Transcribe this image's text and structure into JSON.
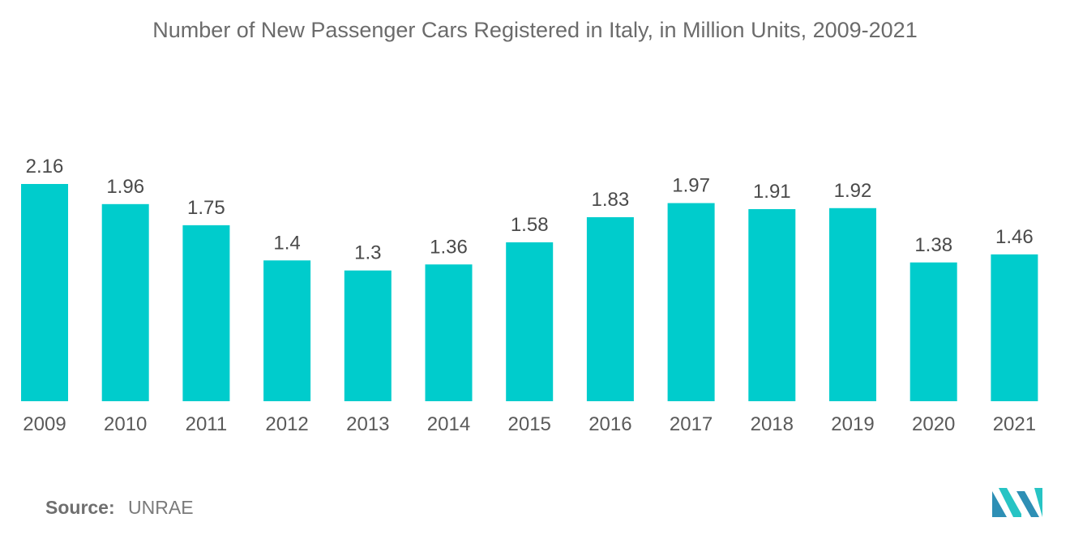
{
  "chart_data": {
    "type": "bar",
    "title": "Number of New Passenger Cars Registered in Italy, in Million Units, 2009-2021",
    "categories": [
      "2009",
      "2010",
      "2011",
      "2012",
      "2013",
      "2014",
      "2015",
      "2016",
      "2017",
      "2018",
      "2019",
      "2020",
      "2021"
    ],
    "values": [
      2.16,
      1.96,
      1.75,
      1.4,
      1.3,
      1.36,
      1.58,
      1.83,
      1.97,
      1.91,
      1.92,
      1.38,
      1.46
    ],
    "value_labels": [
      "2.16",
      "1.96",
      "1.75",
      "1.4",
      "1.3",
      "1.36",
      "1.58",
      "1.83",
      "1.97",
      "1.91",
      "1.92",
      "1.38",
      "1.46"
    ],
    "xlabel": "",
    "ylabel": "",
    "ylim": [
      0,
      2.16
    ],
    "grid": false,
    "legend": "none",
    "bar_color": "#00cccc"
  },
  "source": {
    "label": "Source:",
    "value": "UNRAE"
  },
  "logo": {
    "icon": "mordor-intelligence-logo-icon",
    "colors": [
      "#2e8fb5",
      "#27c4c4"
    ]
  }
}
